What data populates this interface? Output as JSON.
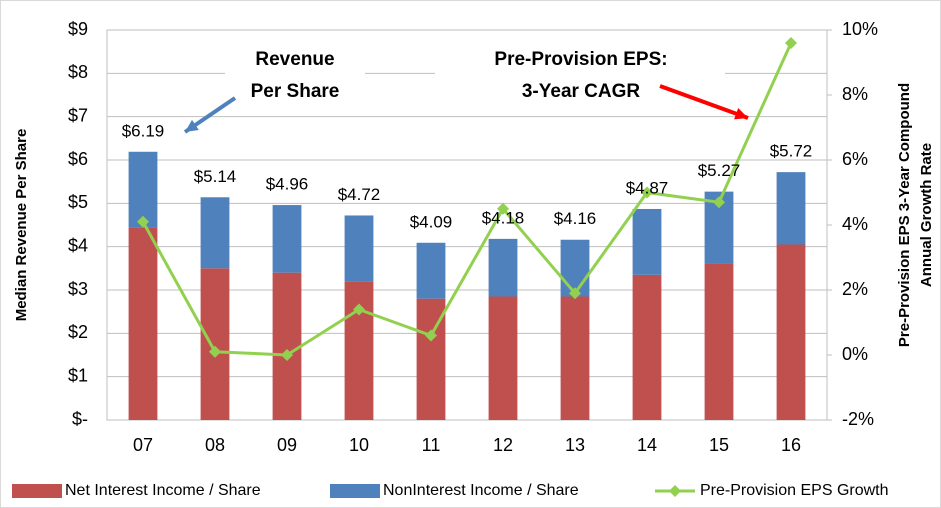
{
  "chart_data": {
    "type": "bar",
    "stacked": true,
    "categories": [
      "07",
      "08",
      "09",
      "10",
      "11",
      "12",
      "13",
      "14",
      "15",
      "16"
    ],
    "series": [
      {
        "name": "Net Interest Income / Share",
        "color": "#c0504d",
        "values": [
          4.45,
          3.5,
          3.4,
          3.2,
          2.8,
          2.85,
          2.85,
          3.35,
          3.62,
          4.05
        ]
      },
      {
        "name": "NonInterest Income / Share",
        "color": "#4f81bd",
        "values": [
          1.74,
          1.64,
          1.56,
          1.52,
          1.29,
          1.33,
          1.31,
          1.52,
          1.65,
          1.67
        ]
      },
      {
        "name": "Pre-Provision EPS Growth",
        "type": "line",
        "axis": "y2",
        "color": "#92d050",
        "values": [
          4.1,
          0.1,
          0.0,
          1.4,
          0.6,
          4.5,
          1.9,
          5.0,
          4.7,
          9.6
        ]
      }
    ],
    "totals": [
      6.19,
      5.14,
      4.96,
      4.72,
      4.09,
      4.18,
      4.16,
      4.87,
      5.27,
      5.72
    ],
    "total_labels": [
      "$6.19",
      "$5.14",
      "$4.96",
      "$4.72",
      "$4.09",
      "$4.18",
      "$4.16",
      "$4.87",
      "$5.27",
      "$5.72"
    ],
    "ylabel": "Median Revenue Per Share",
    "y2label": [
      "Pre-Provision EPS 3-Year Compound",
      "Annual Growth Rate"
    ],
    "ylim": [
      0,
      9
    ],
    "yticks": [
      {
        "value": 0,
        "label": "$-"
      },
      {
        "value": 1,
        "label": "$1"
      },
      {
        "value": 2,
        "label": "$2"
      },
      {
        "value": 3,
        "label": "$3"
      },
      {
        "value": 4,
        "label": "$4"
      },
      {
        "value": 5,
        "label": "$5"
      },
      {
        "value": 6,
        "label": "$6"
      },
      {
        "value": 7,
        "label": "$7"
      },
      {
        "value": 8,
        "label": "$8"
      },
      {
        "value": 9,
        "label": "$9"
      }
    ],
    "y2lim": [
      -2,
      10
    ],
    "y2ticks": [
      {
        "value": -2,
        "label": "-2%"
      },
      {
        "value": 0,
        "label": "0%"
      },
      {
        "value": 2,
        "label": "2%"
      },
      {
        "value": 4,
        "label": "4%"
      },
      {
        "value": 6,
        "label": "6%"
      },
      {
        "value": 8,
        "label": "8%"
      },
      {
        "value": 10,
        "label": "10%"
      }
    ],
    "grid": true,
    "legend": "bottom",
    "annotations": [
      [
        "Revenue",
        "Per Share"
      ],
      [
        "Pre-Provision EPS:",
        "3-Year CAGR"
      ]
    ]
  }
}
